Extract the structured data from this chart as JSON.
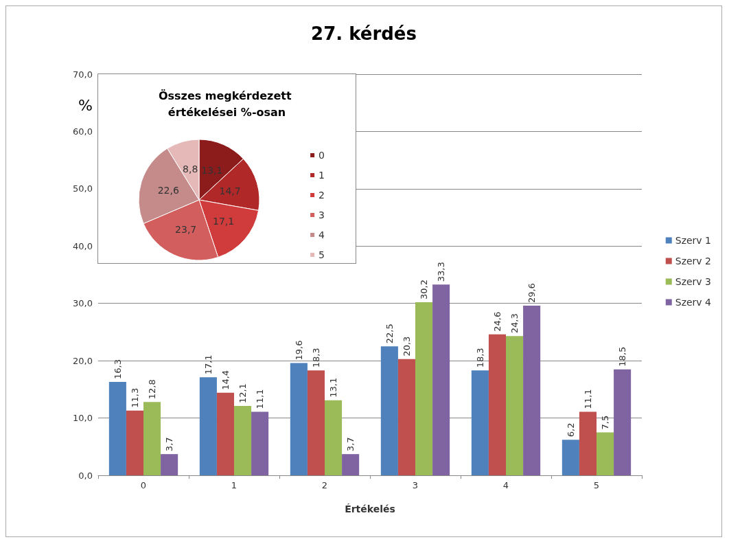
{
  "chart_data": [
    {
      "type": "bar",
      "title": "27. kérdés",
      "ylabel": "%",
      "xlabel": "Értékelés",
      "categories": [
        "0",
        "1",
        "2",
        "3",
        "4",
        "5"
      ],
      "series": [
        {
          "name": "Szerv 1",
          "color": "#4f81bd",
          "values": [
            16.3,
            17.1,
            19.6,
            22.5,
            18.3,
            6.2
          ],
          "value_labels": [
            "16,3",
            "17,1",
            "19,6",
            "22,5",
            "18,3",
            "6,2"
          ]
        },
        {
          "name": "Szerv 2",
          "color": "#c0504d",
          "values": [
            11.3,
            14.4,
            18.3,
            20.3,
            24.6,
            11.1
          ],
          "value_labels": [
            "11,3",
            "14,4",
            "18,3",
            "20,3",
            "24,6",
            "11,1"
          ]
        },
        {
          "name": "Szerv 3",
          "color": "#9bbb59",
          "values": [
            12.8,
            12.1,
            13.1,
            30.2,
            24.3,
            7.5
          ],
          "value_labels": [
            "12,8",
            "12,1",
            "13,1",
            "30,2",
            "24,3",
            "7,5"
          ]
        },
        {
          "name": "Szerv 4",
          "color": "#8064a2",
          "values": [
            3.7,
            11.1,
            3.7,
            33.3,
            29.6,
            18.5
          ],
          "value_labels": [
            "3,7",
            "11,1",
            "3,7",
            "33,3",
            "29,6",
            "18,5"
          ]
        }
      ],
      "ylim": [
        0,
        70
      ],
      "yticks": [
        {
          "value": 0,
          "label": "0,0"
        },
        {
          "value": 10,
          "label": "10,0"
        },
        {
          "value": 20,
          "label": "20,0"
        },
        {
          "value": 30,
          "label": "30,0"
        },
        {
          "value": 40,
          "label": "40,0"
        },
        {
          "value": 50,
          "label": "50,0"
        },
        {
          "value": 60,
          "label": "60,0"
        },
        {
          "value": 70,
          "label": "70,0"
        }
      ],
      "grid": "y",
      "legend": "right"
    },
    {
      "type": "pie",
      "title": "Összes megkérdezett értékelései %-osan",
      "categories": [
        "0",
        "1",
        "2",
        "3",
        "4",
        "5"
      ],
      "values": [
        13.1,
        14.7,
        17.1,
        23.7,
        22.6,
        8.8
      ],
      "colors": [
        "#8c1c1c",
        "#b02828",
        "#d03c3c",
        "#d25e5e",
        "#c58a8a",
        "#e6b9b9"
      ],
      "value_labels": [
        "13,1",
        "14,7",
        "17,1",
        "23,7",
        "22,6",
        "8,8"
      ],
      "legend": "right"
    }
  ]
}
